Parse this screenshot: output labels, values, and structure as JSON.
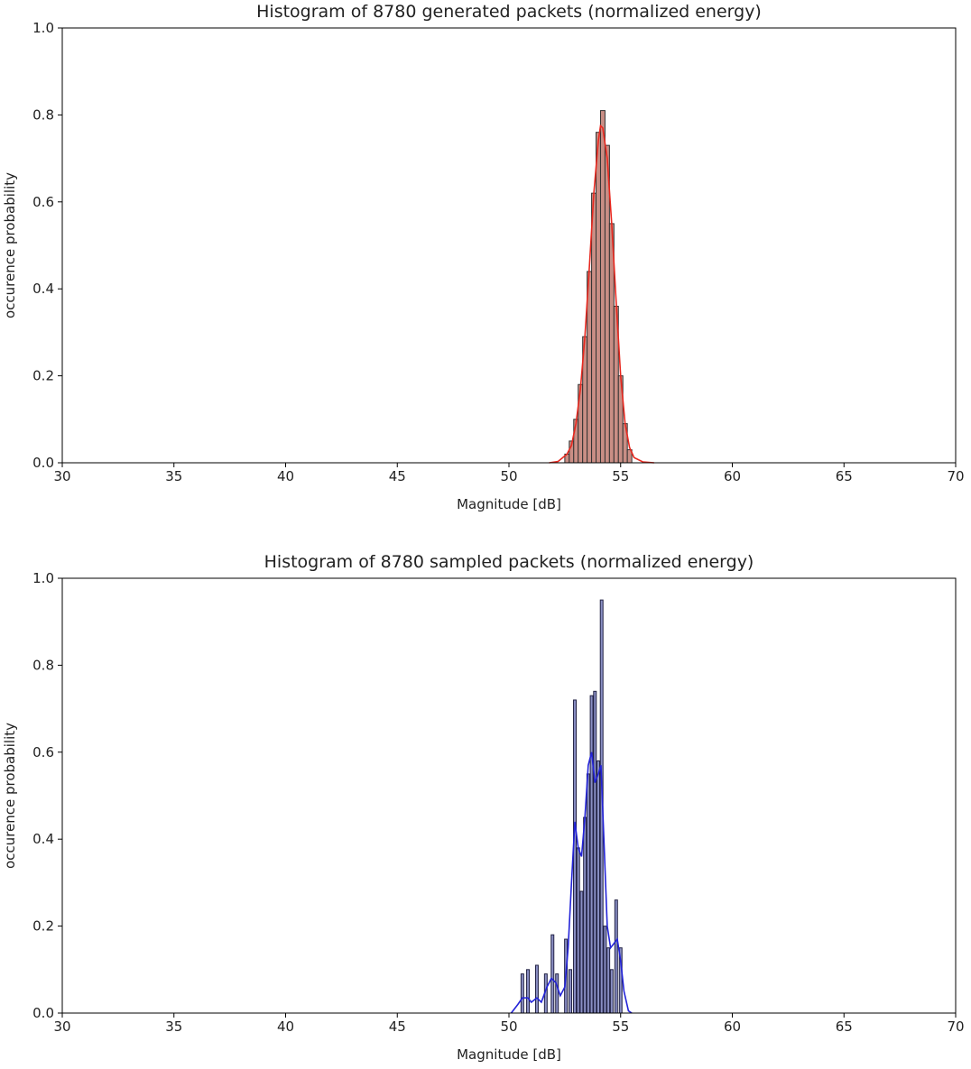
{
  "chart_data": [
    {
      "type": "bar",
      "title": "Histogram of 8780 generated packets (normalized energy)",
      "xlabel": "Magnitude [dB]",
      "ylabel": "occurence probability",
      "xlim": [
        30,
        70
      ],
      "ylim": [
        0,
        1.0
      ],
      "xticks": [
        30,
        35,
        40,
        45,
        50,
        55,
        60,
        65,
        70
      ],
      "yticks": [
        0.0,
        0.2,
        0.4,
        0.6,
        0.8,
        1.0
      ],
      "xtick_labels": [
        "30",
        "35",
        "40",
        "45",
        "50",
        "55",
        "60",
        "65",
        "70"
      ],
      "ytick_labels": [
        "0.0",
        "0.2",
        "0.4",
        "0.6",
        "0.8",
        "1.0"
      ],
      "grid": false,
      "bar_color": "#c98e85",
      "bar_edge": "#333333",
      "bin_width": 0.2,
      "bins": [
        {
          "x": 52.6,
          "y": 0.02
        },
        {
          "x": 52.8,
          "y": 0.05
        },
        {
          "x": 53.0,
          "y": 0.1
        },
        {
          "x": 53.2,
          "y": 0.18
        },
        {
          "x": 53.4,
          "y": 0.29
        },
        {
          "x": 53.6,
          "y": 0.44
        },
        {
          "x": 53.8,
          "y": 0.62
        },
        {
          "x": 54.0,
          "y": 0.76
        },
        {
          "x": 54.2,
          "y": 0.81
        },
        {
          "x": 54.4,
          "y": 0.73
        },
        {
          "x": 54.6,
          "y": 0.55
        },
        {
          "x": 54.8,
          "y": 0.36
        },
        {
          "x": 55.0,
          "y": 0.2
        },
        {
          "x": 55.2,
          "y": 0.09
        },
        {
          "x": 55.4,
          "y": 0.03
        }
      ],
      "curve_color": "#e8281f",
      "curve": [
        [
          51.8,
          0.0
        ],
        [
          52.2,
          0.003
        ],
        [
          52.6,
          0.02
        ],
        [
          52.8,
          0.04
        ],
        [
          53.0,
          0.09
        ],
        [
          53.2,
          0.17
        ],
        [
          53.4,
          0.29
        ],
        [
          53.6,
          0.45
        ],
        [
          53.8,
          0.62
        ],
        [
          54.0,
          0.74
        ],
        [
          54.1,
          0.775
        ],
        [
          54.2,
          0.77
        ],
        [
          54.4,
          0.7
        ],
        [
          54.6,
          0.55
        ],
        [
          54.8,
          0.37
        ],
        [
          55.0,
          0.2
        ],
        [
          55.2,
          0.09
        ],
        [
          55.4,
          0.035
        ],
        [
          55.6,
          0.012
        ],
        [
          56.0,
          0.002
        ],
        [
          56.5,
          0.0
        ]
      ]
    },
    {
      "type": "bar",
      "title": "Histogram of 8780 sampled packets (normalized energy)",
      "xlabel": "Magnitude [dB]",
      "ylabel": "occurence probability",
      "xlim": [
        30,
        70
      ],
      "ylim": [
        0,
        1.0
      ],
      "xticks": [
        30,
        35,
        40,
        45,
        50,
        55,
        60,
        65,
        70
      ],
      "yticks": [
        0.0,
        0.2,
        0.4,
        0.6,
        0.8,
        1.0
      ],
      "xtick_labels": [
        "30",
        "35",
        "40",
        "45",
        "50",
        "55",
        "60",
        "65",
        "70"
      ],
      "ytick_labels": [
        "0.0",
        "0.2",
        "0.4",
        "0.6",
        "0.8",
        "1.0"
      ],
      "grid": false,
      "bar_color": "#8a8fc4",
      "bar_edge": "#222244",
      "bin_width": 0.12,
      "bins": [
        {
          "x": 50.6,
          "y": 0.09
        },
        {
          "x": 50.85,
          "y": 0.1
        },
        {
          "x": 51.25,
          "y": 0.11
        },
        {
          "x": 51.65,
          "y": 0.09
        },
        {
          "x": 51.95,
          "y": 0.18
        },
        {
          "x": 52.15,
          "y": 0.09
        },
        {
          "x": 52.55,
          "y": 0.17
        },
        {
          "x": 52.75,
          "y": 0.1
        },
        {
          "x": 52.95,
          "y": 0.72
        },
        {
          "x": 53.1,
          "y": 0.38
        },
        {
          "x": 53.25,
          "y": 0.28
        },
        {
          "x": 53.4,
          "y": 0.45
        },
        {
          "x": 53.55,
          "y": 0.55
        },
        {
          "x": 53.7,
          "y": 0.73
        },
        {
          "x": 53.85,
          "y": 0.74
        },
        {
          "x": 54.0,
          "y": 0.58
        },
        {
          "x": 54.15,
          "y": 0.95
        },
        {
          "x": 54.3,
          "y": 0.2
        },
        {
          "x": 54.45,
          "y": 0.15
        },
        {
          "x": 54.6,
          "y": 0.1
        },
        {
          "x": 54.8,
          "y": 0.26
        },
        {
          "x": 55.0,
          "y": 0.15
        }
      ],
      "curve_color": "#2323d8",
      "curve": [
        [
          50.1,
          0.0
        ],
        [
          50.4,
          0.02
        ],
        [
          50.6,
          0.035
        ],
        [
          50.85,
          0.035
        ],
        [
          51.0,
          0.025
        ],
        [
          51.25,
          0.035
        ],
        [
          51.45,
          0.025
        ],
        [
          51.7,
          0.06
        ],
        [
          51.9,
          0.08
        ],
        [
          52.1,
          0.07
        ],
        [
          52.3,
          0.04
        ],
        [
          52.5,
          0.06
        ],
        [
          52.65,
          0.15
        ],
        [
          52.8,
          0.3
        ],
        [
          52.95,
          0.44
        ],
        [
          53.1,
          0.38
        ],
        [
          53.25,
          0.36
        ],
        [
          53.4,
          0.45
        ],
        [
          53.55,
          0.57
        ],
        [
          53.7,
          0.6
        ],
        [
          53.85,
          0.53
        ],
        [
          54.0,
          0.55
        ],
        [
          54.12,
          0.57
        ],
        [
          54.25,
          0.4
        ],
        [
          54.4,
          0.2
        ],
        [
          54.55,
          0.15
        ],
        [
          54.7,
          0.16
        ],
        [
          54.85,
          0.17
        ],
        [
          55.0,
          0.12
        ],
        [
          55.15,
          0.05
        ],
        [
          55.35,
          0.005
        ],
        [
          55.5,
          0.0
        ]
      ]
    }
  ]
}
